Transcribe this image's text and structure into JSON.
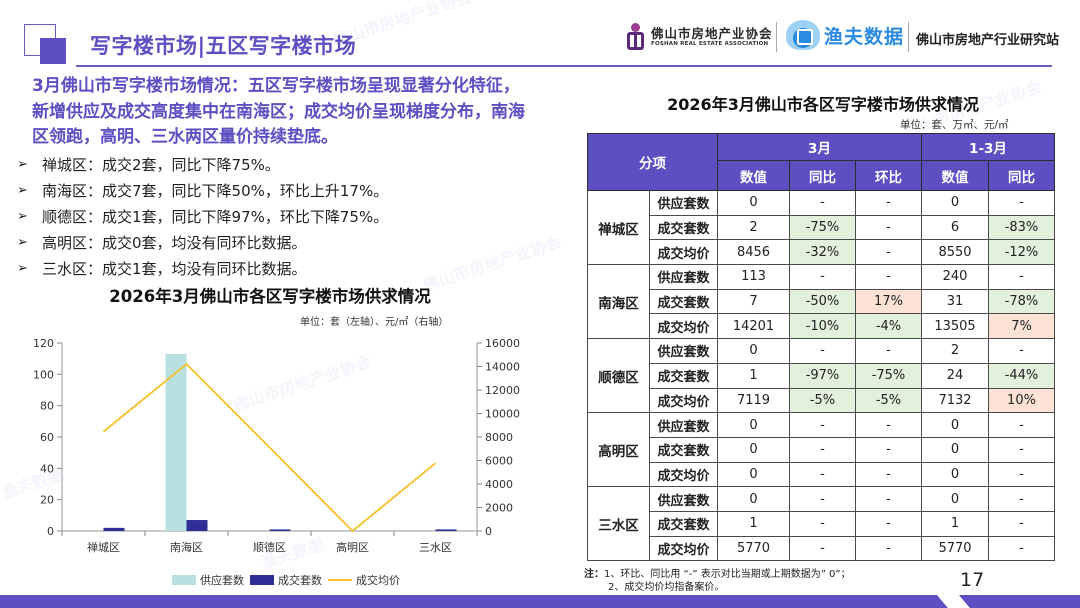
{
  "header": {
    "title": "写字楼市场|五区写字楼市场",
    "logos": {
      "association_cn": "佛山市房地产业协会",
      "association_en": "FOSHAN REAL ESTATE ASSOCIATION",
      "yufu": "渔夫数据",
      "station": "佛山市房地产行业研究站"
    }
  },
  "summary": "3月佛山市写字楼市场情况：五区写字楼市场呈现显著分化特征，新增供应及成交高度集中在南海区；成交均价呈现梯度分布，南海区领跑，高明、三水两区量价持续垫底。",
  "bullets": [
    "禅城区：成交2套，同比下降75%。",
    "南海区：成交7套，同比下降50%，环比上升17%。",
    "顺德区：成交1套，同比下降97%，环比下降75%。",
    "高明区：成交0套，均没有同环比数据。",
    "三水区：成交1套，均没有同环比数据。"
  ],
  "chart": {
    "title": "2026年3月佛山市各区写字楼市场供求情况",
    "unit": "单位：套（左轴）、元/㎡（右轴）",
    "legend": [
      "供应套数",
      "成交套数",
      "成交均价"
    ]
  },
  "chart_data": {
    "type": "bar",
    "title": "2026年3月佛山市各区写字楼市场供求情况",
    "categories": [
      "禅城区",
      "南海区",
      "顺德区",
      "高明区",
      "三水区"
    ],
    "series": [
      {
        "name": "供应套数",
        "type": "bar",
        "axis": "left",
        "color": "#b9e0e0",
        "values": [
          0,
          113,
          0,
          0,
          0
        ]
      },
      {
        "name": "成交套数",
        "type": "bar",
        "axis": "left",
        "color": "#2e2e96",
        "values": [
          2,
          7,
          1,
          0,
          1
        ]
      },
      {
        "name": "成交均价",
        "type": "line",
        "axis": "right",
        "color": "#f5c02a",
        "values": [
          8456,
          14201,
          7119,
          0,
          5770
        ]
      }
    ],
    "ylabel_left": "套",
    "ylabel_right": "元/㎡",
    "ylim_left": [
      0,
      120
    ],
    "yticks_left": [
      0,
      20,
      40,
      60,
      80,
      100,
      120
    ],
    "ylim_right": [
      0,
      16000
    ],
    "yticks_right": [
      0,
      2000,
      4000,
      6000,
      8000,
      10000,
      12000,
      14000,
      16000
    ],
    "unit_note": "单位：套（左轴）、元/㎡（右轴）",
    "legend_position": "bottom",
    "grid": false
  },
  "table": {
    "title": "2026年3月佛山市各区写字楼市场供求情况",
    "unit": "单位：套、万㎡、元/㎡",
    "header": {
      "item": "分项",
      "group_month": "3月",
      "group_ytd": "1-3月",
      "cols": [
        "数值",
        "同比",
        "环比",
        "数值",
        "同比"
      ]
    },
    "districts": [
      {
        "name": "禅城区",
        "rows": [
          {
            "metric": "供应套数",
            "cells": [
              "0",
              "-",
              "-",
              "0",
              "-"
            ],
            "tone": [
              "",
              "",
              "",
              "",
              ""
            ]
          },
          {
            "metric": "成交套数",
            "cells": [
              "2",
              "-75%",
              "-",
              "6",
              "-83%"
            ],
            "tone": [
              "",
              "neg",
              "",
              "",
              "neg"
            ]
          },
          {
            "metric": "成交均价",
            "cells": [
              "8456",
              "-32%",
              "-",
              "8550",
              "-12%"
            ],
            "tone": [
              "",
              "neg",
              "",
              "",
              "neg"
            ]
          }
        ]
      },
      {
        "name": "南海区",
        "rows": [
          {
            "metric": "供应套数",
            "cells": [
              "113",
              "-",
              "-",
              "240",
              "-"
            ],
            "tone": [
              "",
              "",
              "",
              "",
              ""
            ]
          },
          {
            "metric": "成交套数",
            "cells": [
              "7",
              "-50%",
              "17%",
              "31",
              "-78%"
            ],
            "tone": [
              "",
              "neg",
              "pos",
              "",
              "neg"
            ]
          },
          {
            "metric": "成交均价",
            "cells": [
              "14201",
              "-10%",
              "-4%",
              "13505",
              "7%"
            ],
            "tone": [
              "",
              "neg",
              "neg",
              "",
              "pos"
            ]
          }
        ]
      },
      {
        "name": "顺德区",
        "rows": [
          {
            "metric": "供应套数",
            "cells": [
              "0",
              "-",
              "-",
              "2",
              "-"
            ],
            "tone": [
              "",
              "",
              "",
              "",
              ""
            ]
          },
          {
            "metric": "成交套数",
            "cells": [
              "1",
              "-97%",
              "-75%",
              "24",
              "-44%"
            ],
            "tone": [
              "",
              "neg",
              "neg",
              "",
              "neg"
            ]
          },
          {
            "metric": "成交均价",
            "cells": [
              "7119",
              "-5%",
              "-5%",
              "7132",
              "10%"
            ],
            "tone": [
              "",
              "neg",
              "neg",
              "",
              "pos"
            ]
          }
        ]
      },
      {
        "name": "高明区",
        "rows": [
          {
            "metric": "供应套数",
            "cells": [
              "0",
              "-",
              "-",
              "0",
              "-"
            ],
            "tone": [
              "",
              "",
              "",
              "",
              ""
            ]
          },
          {
            "metric": "成交套数",
            "cells": [
              "0",
              "-",
              "-",
              "0",
              "-"
            ],
            "tone": [
              "",
              "",
              "",
              "",
              ""
            ]
          },
          {
            "metric": "成交均价",
            "cells": [
              "0",
              "-",
              "-",
              "0",
              "-"
            ],
            "tone": [
              "",
              "",
              "",
              "",
              ""
            ]
          }
        ]
      },
      {
        "name": "三水区",
        "rows": [
          {
            "metric": "供应套数",
            "cells": [
              "0",
              "-",
              "-",
              "0",
              "-"
            ],
            "tone": [
              "",
              "",
              "",
              "",
              ""
            ]
          },
          {
            "metric": "成交套数",
            "cells": [
              "1",
              "-",
              "-",
              "1",
              "-"
            ],
            "tone": [
              "",
              "",
              "",
              "",
              ""
            ]
          },
          {
            "metric": "成交均价",
            "cells": [
              "5770",
              "-",
              "-",
              "5770",
              "-"
            ],
            "tone": [
              "",
              "",
              "",
              "",
              ""
            ]
          }
        ]
      }
    ]
  },
  "note": {
    "label": "注：",
    "line1": "1、环比、同比用 “-” 表示对比当期或上期数据为” 0”；",
    "line2": "2、成交均价均指备案价。"
  },
  "page_number": "17",
  "colors": {
    "brand_purple": "#5b4fc2",
    "supply_bar": "#b9e0e0",
    "deal_bar": "#2e2e96",
    "price_line": "#f5c02a",
    "decrease_cell": "#e3f0dc",
    "increase_cell": "#fbe2d5"
  }
}
